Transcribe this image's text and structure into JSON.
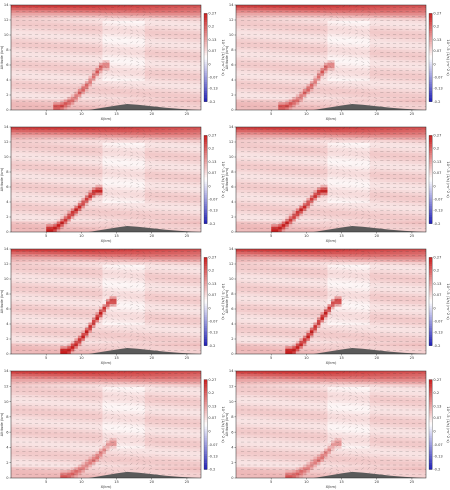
{
  "figure": {
    "colormap": {
      "low": "#1f1fb4",
      "mid": "#ffffff",
      "high": "#c81e1e"
    },
    "terrain_color": "#5a5a5a",
    "quiver_color": "#3a3a3a"
  },
  "chart_data": [
    {
      "type": "heatmap",
      "panel": 1,
      "xlabel": "X(km)",
      "ylabel": "Altitude (km)",
      "cbar_label": "10^-5 (1/s) (m^2 s)",
      "xlim": [
        0,
        27
      ],
      "ylim": [
        0,
        14
      ],
      "xticks": [
        5,
        10,
        15,
        20,
        25
      ],
      "yticks": [
        0,
        2,
        4,
        6,
        8,
        10,
        12,
        14
      ],
      "cbar_ticks": [
        0.27,
        0.2,
        0.13,
        0.07,
        0,
        -0.07,
        -0.13,
        -0.2
      ],
      "terrain": {
        "x": [
          11,
          13,
          15,
          16.5,
          18,
          20,
          22,
          24,
          26,
          27
        ],
        "y": [
          0,
          0.3,
          0.6,
          0.8,
          0.7,
          0.5,
          0.3,
          0.15,
          0.05,
          0
        ]
      },
      "band": {
        "x": [
          7,
          9,
          11,
          13
        ],
        "y": [
          0.4,
          1.5,
          3.5,
          6
        ],
        "strength": 0.6
      },
      "grid": false
    },
    {
      "type": "heatmap",
      "panel": 2,
      "xlabel": "X(km)",
      "ylabel": "Altitude (km)",
      "cbar_label": "10^-5 (1/s) (m^2 s)",
      "xlim": [
        0,
        27
      ],
      "ylim": [
        0,
        14
      ],
      "xticks": [
        5,
        10,
        15,
        20,
        25
      ],
      "yticks": [
        0,
        2,
        4,
        6,
        8,
        10,
        12,
        14
      ],
      "cbar_ticks": [
        0.27,
        0.2,
        0.13,
        0.07,
        0,
        -0.07,
        -0.13,
        -0.2
      ],
      "terrain": {
        "x": [
          11,
          13,
          15,
          16.5,
          18,
          20,
          22,
          24,
          26,
          27
        ],
        "y": [
          0,
          0.3,
          0.6,
          0.8,
          0.7,
          0.5,
          0.3,
          0.15,
          0.05,
          0
        ]
      },
      "band": {
        "x": [
          7,
          9,
          11,
          13
        ],
        "y": [
          0.4,
          1.5,
          3.5,
          6
        ],
        "strength": 0.6
      },
      "grid": false
    },
    {
      "type": "heatmap",
      "panel": 3,
      "xlabel": "X(km)",
      "ylabel": "Altitude (km)",
      "cbar_label": "10^-5 (1/s) (m^2 s)",
      "xlim": [
        0,
        27
      ],
      "ylim": [
        0,
        14
      ],
      "xticks": [
        5,
        10,
        15,
        20,
        25
      ],
      "yticks": [
        0,
        2,
        4,
        6,
        8,
        10,
        12,
        14
      ],
      "cbar_ticks": [
        0.27,
        0.2,
        0.13,
        0.07,
        0,
        -0.07,
        -0.13,
        -0.2
      ],
      "terrain": {
        "x": [
          11,
          13,
          15,
          16.5,
          18,
          20,
          22,
          24,
          26,
          27
        ],
        "y": [
          0,
          0.3,
          0.6,
          0.8,
          0.7,
          0.5,
          0.3,
          0.15,
          0.05,
          0
        ]
      },
      "band": {
        "x": [
          6,
          8,
          10,
          12
        ],
        "y": [
          0.3,
          1.8,
          3.6,
          5.5
        ],
        "strength": 0.9
      },
      "grid": false
    },
    {
      "type": "heatmap",
      "panel": 4,
      "xlabel": "X(km)",
      "ylabel": "Altitude (km)",
      "cbar_label": "10^-5 (1/s) (m^2 s)",
      "xlim": [
        0,
        27
      ],
      "ylim": [
        0,
        14
      ],
      "xticks": [
        5,
        10,
        15,
        20,
        25
      ],
      "yticks": [
        0,
        2,
        4,
        6,
        8,
        10,
        12,
        14
      ],
      "cbar_ticks": [
        0.27,
        0.2,
        0.13,
        0.07,
        0,
        -0.07,
        -0.13,
        -0.2
      ],
      "terrain": {
        "x": [
          11,
          13,
          15,
          16.5,
          18,
          20,
          22,
          24,
          26,
          27
        ],
        "y": [
          0,
          0.3,
          0.6,
          0.8,
          0.7,
          0.5,
          0.3,
          0.15,
          0.05,
          0
        ]
      },
      "band": {
        "x": [
          6,
          8,
          10,
          12
        ],
        "y": [
          0.3,
          1.8,
          3.6,
          5.5
        ],
        "strength": 0.9
      },
      "grid": false
    },
    {
      "type": "heatmap",
      "panel": 5,
      "xlabel": "X(km)",
      "ylabel": "Altitude (km)",
      "cbar_label": "10^-5 (1/s) (m^2 s)",
      "xlim": [
        0,
        27
      ],
      "ylim": [
        0,
        14
      ],
      "xticks": [
        5,
        10,
        15,
        20,
        25
      ],
      "yticks": [
        0,
        2,
        4,
        6,
        8,
        10,
        12,
        14
      ],
      "cbar_ticks": [
        0.27,
        0.2,
        0.13,
        0.07,
        0,
        -0.07,
        -0.13,
        -0.2
      ],
      "terrain": {
        "x": [
          11,
          13,
          15,
          16.5,
          18,
          20,
          22,
          24,
          26,
          27
        ],
        "y": [
          0,
          0.3,
          0.6,
          0.8,
          0.7,
          0.5,
          0.3,
          0.15,
          0.05,
          0
        ]
      },
      "band": {
        "x": [
          8,
          10,
          12,
          14
        ],
        "y": [
          0.3,
          2,
          4.5,
          7
        ],
        "strength": 1.0
      },
      "grid": false
    },
    {
      "type": "heatmap",
      "panel": 6,
      "xlabel": "X(km)",
      "ylabel": "Altitude (km)",
      "cbar_label": "10^-5 (1/s) (m^2 s)",
      "xlim": [
        0,
        27
      ],
      "ylim": [
        0,
        14
      ],
      "xticks": [
        5,
        10,
        15,
        20,
        25
      ],
      "yticks": [
        0,
        2,
        4,
        6,
        8,
        10,
        12,
        14
      ],
      "cbar_ticks": [
        0.27,
        0.2,
        0.13,
        0.07,
        0,
        -0.07,
        -0.13,
        -0.2
      ],
      "terrain": {
        "x": [
          11,
          13,
          15,
          16.5,
          18,
          20,
          22,
          24,
          26,
          27
        ],
        "y": [
          0,
          0.3,
          0.6,
          0.8,
          0.7,
          0.5,
          0.3,
          0.15,
          0.05,
          0
        ]
      },
      "band": {
        "x": [
          8,
          10,
          12,
          14
        ],
        "y": [
          0.3,
          2,
          4.5,
          7
        ],
        "strength": 1.0
      },
      "grid": false
    },
    {
      "type": "heatmap",
      "panel": 7,
      "xlabel": "X(km)",
      "ylabel": "Altitude (km)",
      "cbar_label": "10^-5 (1/s) (m^2 s)",
      "xlim": [
        0,
        27
      ],
      "ylim": [
        0,
        14
      ],
      "xticks": [
        5,
        10,
        15,
        20,
        25
      ],
      "yticks": [
        0,
        2,
        4,
        6,
        8,
        10,
        12,
        14
      ],
      "cbar_ticks": [
        0.27,
        0.2,
        0.13,
        0.07,
        0,
        -0.07,
        -0.13,
        -0.2
      ],
      "terrain": {
        "x": [
          11,
          13,
          15,
          16.5,
          18,
          20,
          22,
          24,
          26,
          27
        ],
        "y": [
          0,
          0.3,
          0.6,
          0.8,
          0.7,
          0.5,
          0.3,
          0.15,
          0.05,
          0
        ]
      },
      "band": {
        "x": [
          8,
          10,
          12,
          14
        ],
        "y": [
          0.2,
          1.2,
          2.5,
          4.5
        ],
        "strength": 0.5
      },
      "grid": false
    },
    {
      "type": "heatmap",
      "panel": 8,
      "xlabel": "X(km)",
      "ylabel": "Altitude (km)",
      "cbar_label": "10^-5 (1/s) (m^2 s)",
      "xlim": [
        0,
        27
      ],
      "ylim": [
        0,
        14
      ],
      "xticks": [
        5,
        10,
        15,
        20,
        25
      ],
      "yticks": [
        0,
        2,
        4,
        6,
        8,
        10,
        12,
        14
      ],
      "cbar_ticks": [
        0.27,
        0.2,
        0.13,
        0.07,
        0,
        -0.07,
        -0.13,
        -0.2
      ],
      "terrain": {
        "x": [
          11,
          13,
          15,
          16.5,
          18,
          20,
          22,
          24,
          26,
          27
        ],
        "y": [
          0,
          0.3,
          0.6,
          0.8,
          0.7,
          0.5,
          0.3,
          0.15,
          0.05,
          0
        ]
      },
      "band": {
        "x": [
          8,
          10,
          12,
          14
        ],
        "y": [
          0.2,
          1.2,
          2.5,
          4.5
        ],
        "strength": 0.5
      },
      "grid": false
    }
  ]
}
